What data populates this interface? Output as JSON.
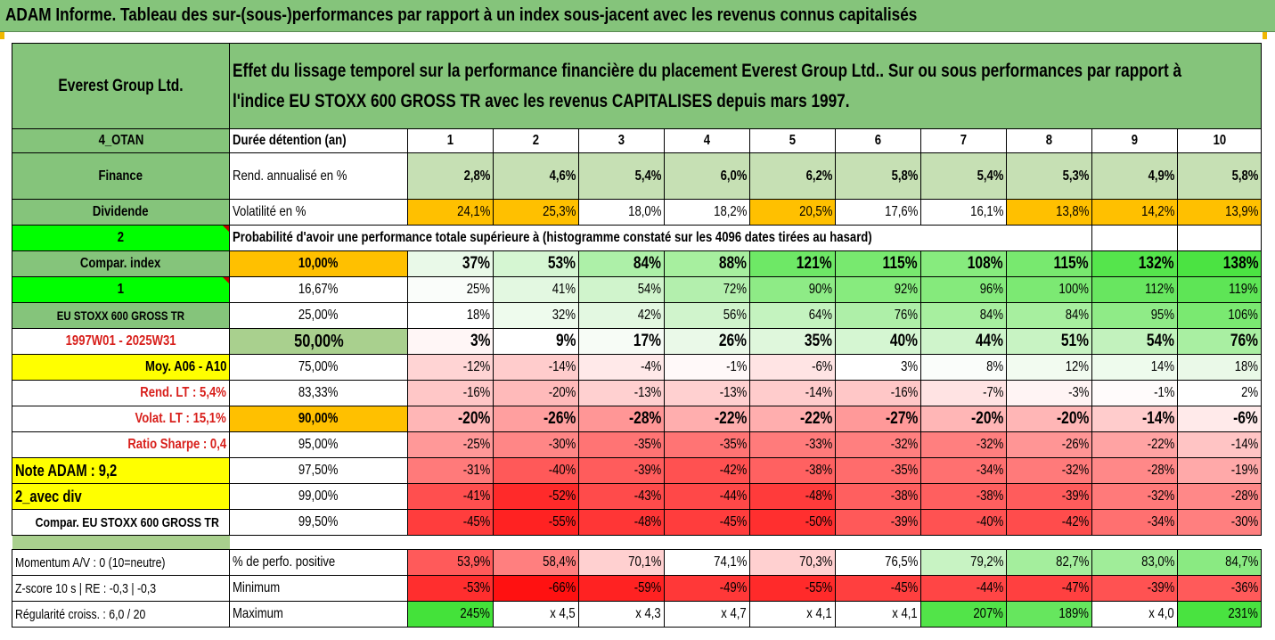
{
  "title": "ADAM Informe. Tableau des sur-(sous-)performances par rapport à un index sous-jacent avec les revenus connus capitalisés",
  "colors": {
    "header_green": "#85c47b",
    "light_green": "#c6e0b4",
    "orange": "#ffc000",
    "yellow": "#ffff00",
    "bright_green": "#00ff00",
    "red_text": "#d8201c"
  },
  "header": {
    "company": "Everest Group Ltd.",
    "desc_line1": "Effet du lissage temporel sur la performance financière du placement Everest Group Ltd.. Sur ou sous performances par rapport à",
    "desc_line2": "l'indice EU STOXX 600 GROSS TR avec les revenus CAPITALISES depuis mars 1997."
  },
  "rows": {
    "duree": {
      "left": "4_OTAN",
      "label": "Durée détention (an)",
      "values": [
        "1",
        "2",
        "3",
        "4",
        "5",
        "6",
        "7",
        "8",
        "9",
        "10"
      ]
    },
    "rend": {
      "left": "Finance",
      "label": "Rend. annualisé en %",
      "values": [
        "2,8%",
        "4,6%",
        "5,4%",
        "6,0%",
        "6,2%",
        "5,8%",
        "5,4%",
        "5,3%",
        "4,9%",
        "5,8%"
      ]
    },
    "vol": {
      "left": "Dividende",
      "label": "Volatilité en %",
      "values": [
        "24,1%",
        "25,3%",
        "18,0%",
        "18,2%",
        "20,5%",
        "17,6%",
        "16,1%",
        "13,8%",
        "14,2%",
        "13,9%"
      ]
    },
    "prob": {
      "left": "2",
      "label": "Probabilité d'avoir une performance totale supérieure à (histogramme constaté sur les 4096 dates tirées au hasard)"
    },
    "pct": [
      {
        "left": "Compar. index",
        "pct": "10,00%",
        "values": [
          "37%",
          "53%",
          "84%",
          "88%",
          "121%",
          "115%",
          "108%",
          "115%",
          "132%",
          "138%"
        ]
      },
      {
        "left": "1",
        "pct": "16,67%",
        "values": [
          "25%",
          "41%",
          "54%",
          "72%",
          "90%",
          "92%",
          "96%",
          "100%",
          "112%",
          "119%"
        ]
      },
      {
        "left": "EU STOXX 600 GROSS TR",
        "pct": "25,00%",
        "values": [
          "18%",
          "32%",
          "42%",
          "56%",
          "64%",
          "76%",
          "84%",
          "84%",
          "95%",
          "106%"
        ]
      },
      {
        "left": "1997W01 - 2025W31",
        "pct": "50,00%",
        "values": [
          "3%",
          "9%",
          "17%",
          "26%",
          "35%",
          "40%",
          "44%",
          "51%",
          "54%",
          "76%"
        ]
      },
      {
        "left": "Moy. A06 - A10",
        "pct": "75,00%",
        "values": [
          "-12%",
          "-14%",
          "-4%",
          "-1%",
          "-6%",
          "3%",
          "8%",
          "12%",
          "14%",
          "18%"
        ]
      },
      {
        "left": "Rend. LT :    5,4%",
        "pct": "83,33%",
        "values": [
          "-16%",
          "-20%",
          "-13%",
          "-13%",
          "-14%",
          "-16%",
          "-7%",
          "-3%",
          "-1%",
          "2%"
        ]
      },
      {
        "left": "Volat. LT :   15,1%",
        "pct": "90,00%",
        "values": [
          "-20%",
          "-26%",
          "-28%",
          "-22%",
          "-22%",
          "-27%",
          "-20%",
          "-20%",
          "-14%",
          "-6%"
        ]
      },
      {
        "left": "Ratio Sharpe :    0,4",
        "pct": "95,00%",
        "values": [
          "-25%",
          "-30%",
          "-35%",
          "-35%",
          "-33%",
          "-32%",
          "-32%",
          "-26%",
          "-22%",
          "-14%"
        ]
      },
      {
        "left": "Note ADAM : 9,2",
        "pct": "97,50%",
        "values": [
          "-31%",
          "-40%",
          "-39%",
          "-42%",
          "-38%",
          "-35%",
          "-34%",
          "-32%",
          "-28%",
          "-19%"
        ]
      },
      {
        "left": "2_avec div",
        "pct": "99,00%",
        "values": [
          "-41%",
          "-52%",
          "-43%",
          "-44%",
          "-48%",
          "-38%",
          "-38%",
          "-39%",
          "-32%",
          "-28%"
        ]
      },
      {
        "left": "Compar. EU STOXX 600 GROSS TR",
        "pct": "99,50%",
        "values": [
          "-45%",
          "-55%",
          "-48%",
          "-45%",
          "-50%",
          "-39%",
          "-40%",
          "-42%",
          "-34%",
          "-30%"
        ]
      }
    ],
    "bottom": [
      {
        "left": "Momentum A/V : 0 (10=neutre)",
        "label": "% de perfo. positive",
        "values": [
          "53,9%",
          "58,4%",
          "70,1%",
          "74,1%",
          "70,3%",
          "76,5%",
          "79,2%",
          "82,7%",
          "83,0%",
          "84,7%"
        ]
      },
      {
        "left": "Z-score 10 s  |  RE : -0,3  |  -0,3",
        "label": "Minimum",
        "values": [
          "-53%",
          "-66%",
          "-59%",
          "-49%",
          "-55%",
          "-45%",
          "-44%",
          "-47%",
          "-39%",
          "-36%"
        ]
      },
      {
        "left": "Régularité croiss. : 6,0 / 20",
        "label": "Maximum",
        "values": [
          "245%",
          "x 4,5",
          "x 4,3",
          "x 4,7",
          "x 4,1",
          "x 4,1",
          "207%",
          "189%",
          "x 4,0",
          "231%"
        ]
      }
    ]
  },
  "cell_colors": {
    "rend": [
      "#c6e0b4",
      "#c6e0b4",
      "#c6e0b4",
      "#c6e0b4",
      "#c6e0b4",
      "#c6e0b4",
      "#c6e0b4",
      "#c6e0b4",
      "#c6e0b4",
      "#c6e0b4"
    ],
    "vol": [
      "#ffc000",
      "#ffc000",
      "#ffffff",
      "#ffffff",
      "#ffc000",
      "#ffffff",
      "#ffffff",
      "#ffc000",
      "#ffc000",
      "#ffc000"
    ],
    "pct": [
      [
        "#e9f9e8",
        "#d5f6d2",
        "#adf0a8",
        "#a7ef9f",
        "#6ee866",
        "#78e96f",
        "#87eb7e",
        "#78e96f",
        "#55e54c",
        "#4be342"
      ],
      [
        "#fafdfa",
        "#e3f8e1",
        "#d0f4cc",
        "#b3ef ad",
        "#8eeb86",
        "#87eb7e",
        "#85ea7c",
        "#7ce973",
        "#68e660",
        "#5ee556"
      ],
      [
        "#ffffff",
        "#eefbed",
        "#e3f8e1",
        "#d0f4cc",
        "#c4f3bf",
        "#aeefa8",
        "#a7ef9f",
        "#a7ef9f",
        "#8feb87",
        "#7ae971"
      ],
      [
        "#fff6f6",
        "#ffffff",
        "#f7fcf6",
        "#eaf9e8",
        "#dff7dc",
        "#d5f6d2",
        "#cff4cb",
        "#c8f3c3",
        "#c2f2bd",
        "#a9ef a2"
      ],
      [
        "#ffd4d4",
        "#ffcccc",
        "#ffe9e9",
        "#fff9f9",
        "#ffe4e4",
        "#ffffff",
        "#fafdfa",
        "#f2fbf0",
        "#eefbed",
        "#eaf9e8"
      ],
      [
        "#ffc7c7",
        "#ffbaba",
        "#ffd0d0",
        "#ffd0d0",
        "#ffcccc",
        "#ffc7c7",
        "#ffe3e3",
        "#fff4f4",
        "#fffbfb",
        "#ffffff"
      ],
      [
        "#ffb6b6",
        "#ff9f9f",
        "#ff9696",
        "#ffaeae",
        "#ffaeae",
        "#ff9999",
        "#ffb6b6",
        "#ffb6b6",
        "#ffcccc",
        "#ffeaea"
      ],
      [
        "#ff9898",
        "#ff8686",
        "#ff7474",
        "#ff7474",
        "#ff7b7b",
        "#ff7f7f",
        "#ff7f7f",
        "#ff9595",
        "#ffa3a3",
        "#ffc4c4"
      ],
      [
        "#ff7a7a",
        "#ff5959",
        "#ff5c5c",
        "#ff5151",
        "#ff6161",
        "#ff6c6c",
        "#ff7070",
        "#ff7a7a",
        "#ff8888",
        "#ffa9a9"
      ],
      [
        "#ff4f4f",
        "#ff2a2a",
        "#ff4b4b",
        "#ff4848",
        "#ff3b3b",
        "#ff5f5f",
        "#ff5f5f",
        "#ff5c5c",
        "#ff7a7a",
        "#ff8888"
      ],
      [
        "#ff3d3d",
        "#ff2222",
        "#ff3636",
        "#ff3d3d",
        "#ff2f2f",
        "#ff5959",
        "#ff5252",
        "#ff4c4c",
        "#ff7070",
        "#ff7f7f"
      ]
    ],
    "bottom": [
      [
        "#ff5a5a",
        "#ff7f7f",
        "#ffd0d0",
        "#ffffff",
        "#ffd0d0",
        "#ffffff",
        "#c8f3c3",
        "#a4ee9d",
        "#a0ed99",
        "#8aea82"
      ],
      [
        "#ff2e2e",
        "#ff1111",
        "#ff2222",
        "#ff3838",
        "#ff2a2a",
        "#ff3f3f",
        "#ff4545",
        "#ff4040",
        "#ff5252",
        "#ff5a5a"
      ],
      [
        "#44e23a",
        "#ffffff",
        "#ffffff",
        "#ffffff",
        "#ffffff",
        "#ffffff",
        "#52e449",
        "#66e65e",
        "#ffffff",
        "#49e340"
      ]
    ]
  },
  "left_colors": [
    "#85c47b",
    "#85c47b",
    "#85c47b",
    "#00ff00",
    "#85c47b",
    "#00ff00",
    "#85c47b",
    "#ffffff",
    "#ffff00",
    "#ffffff",
    "#ffffff",
    "#ffffff",
    "#ffff00",
    "#ffff00",
    "#ffffff"
  ],
  "pct_colors": [
    "#ffc000",
    "#ffffff",
    "#ffffff",
    "#a9d08e",
    "#ffffff",
    "#ffffff",
    "#ffc000",
    "#ffffff",
    "#ffffff",
    "#ffffff",
    "#ffffff"
  ]
}
